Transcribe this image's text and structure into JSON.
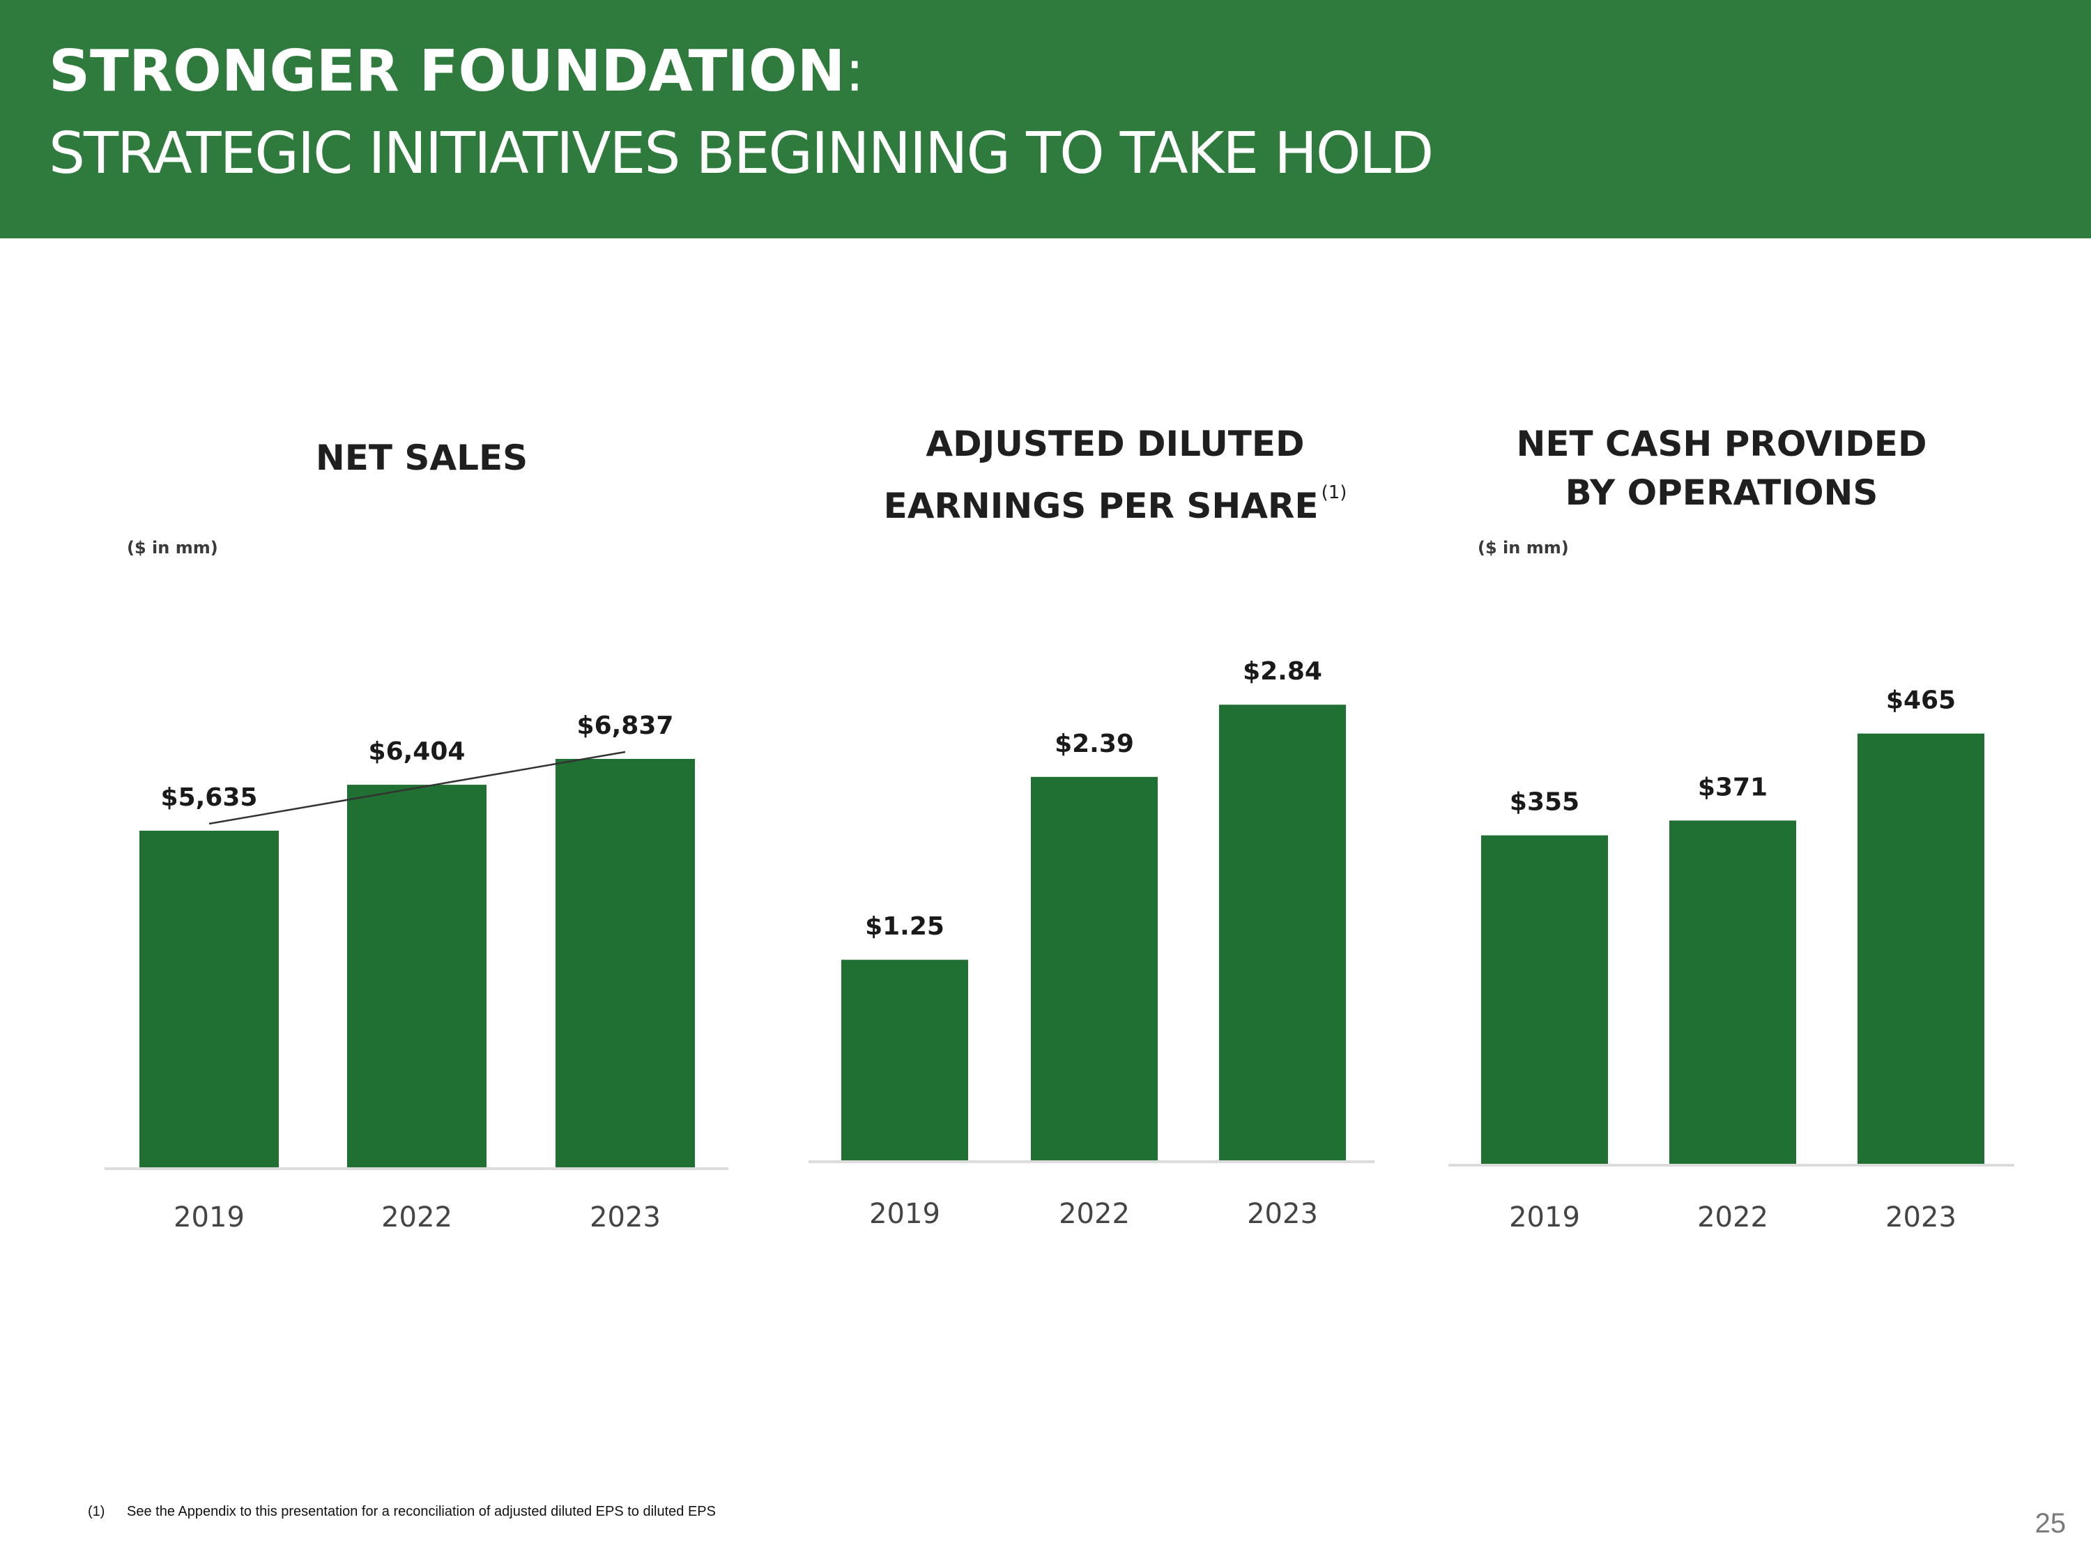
{
  "header": {
    "title_bold": "STRONGER FOUNDATION",
    "title_colon": ":",
    "subtitle": "STRATEGIC INITIATIVES BEGINNING TO TAKE HOLD"
  },
  "colors": {
    "header_bg": "#2e7b3d",
    "bar": "#1f7032",
    "axis": "#dcdcdc",
    "trend": "#333333"
  },
  "chart_data": [
    {
      "type": "bar",
      "title_lines": [
        "NET SALES"
      ],
      "title_sup": "",
      "unit": "($ in mm)",
      "categories": [
        "2019",
        "2022",
        "2023"
      ],
      "values": [
        5635,
        6404,
        6837
      ],
      "labels": [
        "$5,635",
        "$6,404",
        "$6,837"
      ],
      "ylim": [
        0,
        9275
      ],
      "trend_line": true
    },
    {
      "type": "bar",
      "title_lines": [
        "ADJUSTED DILUTED",
        "EARNINGS PER SHARE"
      ],
      "title_sup": "(1)",
      "unit": "",
      "categories": [
        "2019",
        "2022",
        "2023"
      ],
      "values": [
        1.25,
        2.39,
        2.84
      ],
      "labels": [
        "$1.25",
        "$2.39",
        "$2.84"
      ],
      "ylim": [
        0,
        3.41
      ],
      "trend_line": false
    },
    {
      "type": "bar",
      "title_lines": [
        "NET CASH PROVIDED",
        "BY OPERATIONS"
      ],
      "title_sup": "",
      "unit": "($ in mm)",
      "categories": [
        "2019",
        "2022",
        "2023"
      ],
      "values": [
        355,
        371,
        465
      ],
      "labels": [
        "$355",
        "$371",
        "$465"
      ],
      "ylim": [
        0,
        595
      ],
      "trend_line": false
    }
  ],
  "footnote": {
    "marker": "(1)",
    "text": "See the Appendix to this presentation for a reconciliation of adjusted diluted EPS to diluted EPS"
  },
  "page_number": "25"
}
